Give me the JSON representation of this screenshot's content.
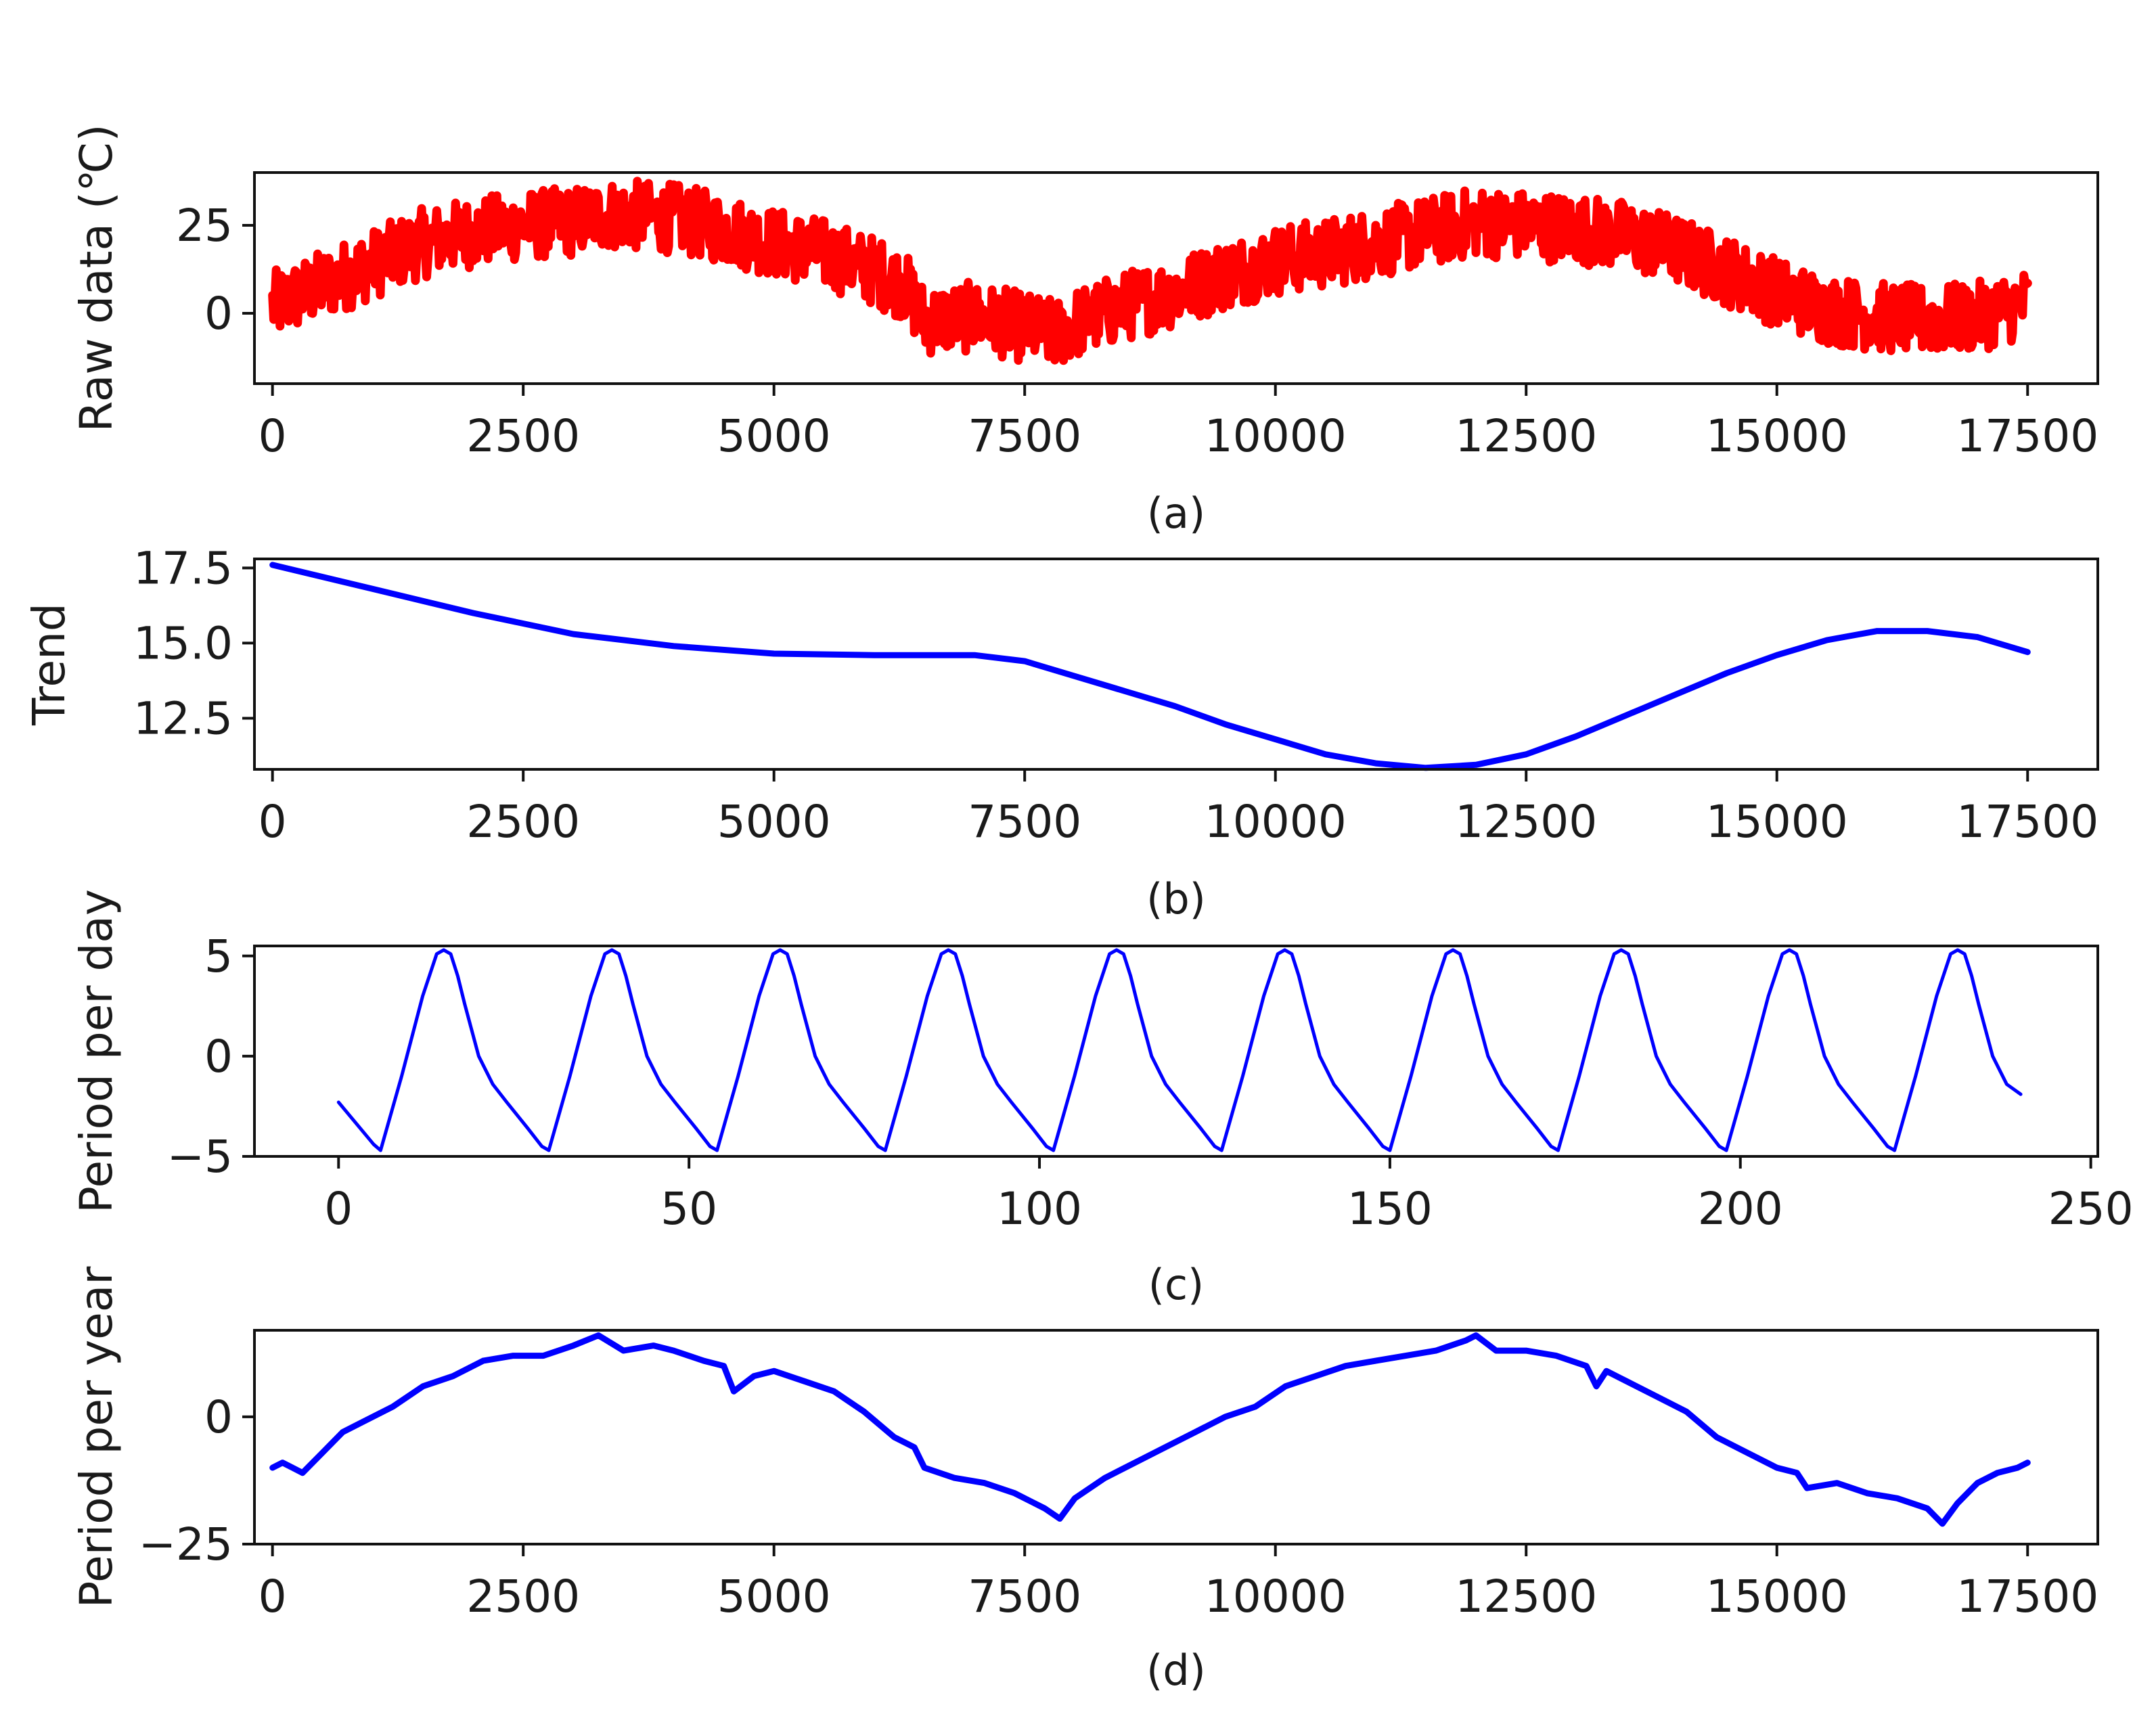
{
  "chart_data": [
    {
      "id": "a",
      "type": "line",
      "caption": "(a)",
      "ylabel": "Raw data (℃)",
      "xlabel": "",
      "xlim": [
        -180,
        18200
      ],
      "ylim": [
        -20,
        40
      ],
      "xticks": [
        0,
        2500,
        5000,
        7500,
        10000,
        12500,
        15000,
        17500
      ],
      "xtick_labels": [
        "0",
        "2500",
        "5000",
        "7500",
        "10000",
        "12500",
        "15000",
        "17500"
      ],
      "yticks": [
        0,
        25
      ],
      "ytick_labels": [
        "0",
        "25"
      ],
      "series": [
        {
          "color": "#ff0000",
          "style": "noisy band (hourly temperature, ±10 ℃ spread around the envelope)",
          "x": [
            0,
            500,
            1000,
            1500,
            2000,
            2500,
            3000,
            3300,
            3500,
            4000,
            4500,
            5000,
            5500,
            6000,
            6300,
            6500,
            7000,
            7500,
            7800,
            8000,
            8500,
            9000,
            9500,
            10000,
            10500,
            11000,
            11500,
            12000,
            12500,
            13000,
            13500,
            14000,
            14500,
            15000,
            15500,
            16000,
            16500,
            17000,
            17500
          ],
          "y": [
            2,
            8,
            14,
            20,
            23,
            25,
            26,
            28,
            28,
            27,
            24,
            20,
            17,
            12,
            8,
            -2,
            -1,
            -4,
            -6,
            -3,
            2,
            6,
            11,
            15,
            17,
            20,
            23,
            26,
            25,
            24,
            22,
            18,
            12,
            6,
            1,
            -1,
            -2,
            -1,
            3
          ]
        }
      ]
    },
    {
      "id": "b",
      "type": "line",
      "caption": "(b)",
      "ylabel": "Trend",
      "xlabel": "",
      "xlim": [
        -180,
        18200
      ],
      "ylim": [
        10.8,
        17.8
      ],
      "xticks": [
        0,
        2500,
        5000,
        7500,
        10000,
        12500,
        15000,
        17500
      ],
      "xtick_labels": [
        "0",
        "2500",
        "5000",
        "7500",
        "10000",
        "12500",
        "15000",
        "17500"
      ],
      "yticks": [
        12.5,
        15.0,
        17.5
      ],
      "ytick_labels": [
        "12.5",
        "15.0",
        "17.5"
      ],
      "series": [
        {
          "color": "#0000ff",
          "x": [
            0,
            1000,
            2000,
            3000,
            4000,
            5000,
            6000,
            7000,
            7500,
            8000,
            8500,
            9000,
            9500,
            10000,
            10500,
            11000,
            11500,
            12000,
            12500,
            13000,
            13500,
            14000,
            14500,
            15000,
            15500,
            16000,
            16500,
            17000,
            17500
          ],
          "y": [
            17.6,
            16.8,
            16.0,
            15.3,
            14.9,
            14.65,
            14.6,
            14.6,
            14.4,
            13.9,
            13.4,
            12.9,
            12.3,
            11.8,
            11.3,
            11.0,
            10.85,
            10.95,
            11.3,
            11.9,
            12.6,
            13.3,
            14.0,
            14.6,
            15.1,
            15.4,
            15.4,
            15.2,
            14.7
          ]
        }
      ]
    },
    {
      "id": "c",
      "type": "line",
      "caption": "(c)",
      "ylabel": "Period per day",
      "xlabel": "",
      "xlim": [
        -12,
        251
      ],
      "ylim": [
        -5,
        5.5
      ],
      "xticks": [
        0,
        50,
        100,
        150,
        200,
        250
      ],
      "xtick_labels": [
        "0",
        "50",
        "100",
        "150",
        "200",
        "250"
      ],
      "yticks": [
        -5,
        0,
        5
      ],
      "ytick_labels": [
        "−5",
        "0",
        "5"
      ],
      "series": [
        {
          "color": "#0000ff",
          "period": 24,
          "x": [
            0,
            5,
            6,
            9,
            12,
            14,
            15,
            16,
            17,
            18,
            20,
            22,
            24,
            27,
            29,
            30,
            33,
            36,
            38,
            39,
            40,
            41,
            42,
            44,
            46,
            48,
            51,
            53,
            54,
            57,
            60,
            62,
            63,
            64,
            65,
            66,
            68,
            70,
            72,
            75,
            77,
            78,
            81,
            84,
            86,
            87,
            88,
            89,
            90,
            92,
            94,
            96,
            99,
            101,
            102,
            105,
            108,
            110,
            111,
            112,
            113,
            114,
            116,
            118,
            120,
            123,
            125,
            126,
            129,
            132,
            134,
            135,
            136,
            137,
            138,
            140,
            142,
            144,
            147,
            149,
            150,
            153,
            156,
            158,
            159,
            160,
            161,
            162,
            164,
            166,
            168,
            171,
            173,
            174,
            177,
            180,
            182,
            183,
            184,
            185,
            186,
            188,
            190,
            192,
            195,
            197,
            198,
            201,
            204,
            206,
            207,
            208,
            209,
            210,
            212,
            214,
            216,
            219,
            221,
            222,
            225,
            228,
            230,
            231,
            232,
            233,
            234,
            236,
            238,
            240
          ],
          "y": [
            -2.3,
            -4.4,
            -4.7,
            -1,
            3,
            5.1,
            5.3,
            5.1,
            4,
            2.6,
            0,
            -1.4,
            -2.3,
            -3.6,
            -4.5,
            -4.7,
            -1,
            3,
            5.1,
            5.3,
            5.1,
            4,
            2.6,
            0,
            -1.4,
            -2.3,
            -3.6,
            -4.5,
            -4.7,
            -1,
            3,
            5.1,
            5.3,
            5.1,
            4,
            2.6,
            0,
            -1.4,
            -2.3,
            -3.6,
            -4.5,
            -4.7,
            -1,
            3,
            5.1,
            5.3,
            5.1,
            4,
            2.6,
            0,
            -1.4,
            -2.3,
            -3.6,
            -4.5,
            -4.7,
            -1,
            3,
            5.1,
            5.3,
            5.1,
            4,
            2.6,
            0,
            -1.4,
            -2.3,
            -3.6,
            -4.5,
            -4.7,
            -1,
            3,
            5.1,
            5.3,
            5.1,
            4,
            2.6,
            0,
            -1.4,
            -2.3,
            -3.6,
            -4.5,
            -4.7,
            -1,
            3,
            5.1,
            5.3,
            5.1,
            4,
            2.6,
            0,
            -1.4,
            -2.3,
            -3.6,
            -4.5,
            -4.7,
            -1,
            3,
            5.1,
            5.3,
            5.1,
            4,
            2.6,
            0,
            -1.4,
            -2.3,
            -3.6,
            -4.5,
            -4.7,
            -1,
            3,
            5.1,
            5.3,
            5.1,
            4,
            2.6,
            0,
            -1.4,
            -2.3,
            -3.6,
            -4.5,
            -4.7,
            -1,
            3,
            5.1,
            5.3,
            5.1,
            4,
            2.6,
            0,
            -1.4,
            -1.9
          ]
        }
      ]
    },
    {
      "id": "d",
      "type": "line",
      "caption": "(d)",
      "ylabel": "Period per year",
      "xlabel": "",
      "xlim": [
        -180,
        18200
      ],
      "ylim": [
        -25,
        17
      ],
      "xticks": [
        0,
        2500,
        5000,
        7500,
        10000,
        12500,
        15000,
        17500
      ],
      "xtick_labels": [
        "0",
        "2500",
        "5000",
        "7500",
        "10000",
        "12500",
        "15000",
        "17500"
      ],
      "yticks": [
        -25,
        0
      ],
      "ytick_labels": [
        "−25",
        "0"
      ],
      "series": [
        {
          "color": "#0000ff",
          "x": [
            0,
            100,
            200,
            300,
            500,
            700,
            900,
            1200,
            1500,
            1800,
            2100,
            2400,
            2700,
            3000,
            3250,
            3500,
            3800,
            4000,
            4300,
            4500,
            4600,
            4800,
            5000,
            5300,
            5600,
            5900,
            6200,
            6400,
            6500,
            6800,
            7100,
            7400,
            7700,
            7850,
            8000,
            8300,
            8600,
            8900,
            9200,
            9500,
            9800,
            10100,
            10400,
            10700,
            11000,
            11300,
            11600,
            11900,
            12000,
            12200,
            12500,
            12800,
            13100,
            13200,
            13300,
            13500,
            13800,
            14100,
            14400,
            14700,
            15000,
            15200,
            15300,
            15600,
            15900,
            16200,
            16500,
            16650,
            16800,
            17000,
            17200,
            17400,
            17500
          ],
          "y": [
            -10,
            -9,
            -10,
            -11,
            -7,
            -3,
            -1,
            2,
            6,
            8,
            11,
            12,
            12,
            14,
            16,
            13,
            14,
            13,
            11,
            10,
            5,
            8,
            9,
            7,
            5,
            1,
            -4,
            -6,
            -10,
            -12,
            -13,
            -15,
            -18,
            -20,
            -16,
            -12,
            -9,
            -6,
            -3,
            0,
            2,
            6,
            8,
            10,
            11,
            12,
            13,
            15,
            16,
            13,
            13,
            12,
            10,
            6,
            9,
            7,
            4,
            1,
            -4,
            -7,
            -10,
            -11,
            -14,
            -13,
            -15,
            -16,
            -18,
            -21,
            -17,
            -13,
            -11,
            -10,
            -9
          ]
        }
      ]
    }
  ]
}
